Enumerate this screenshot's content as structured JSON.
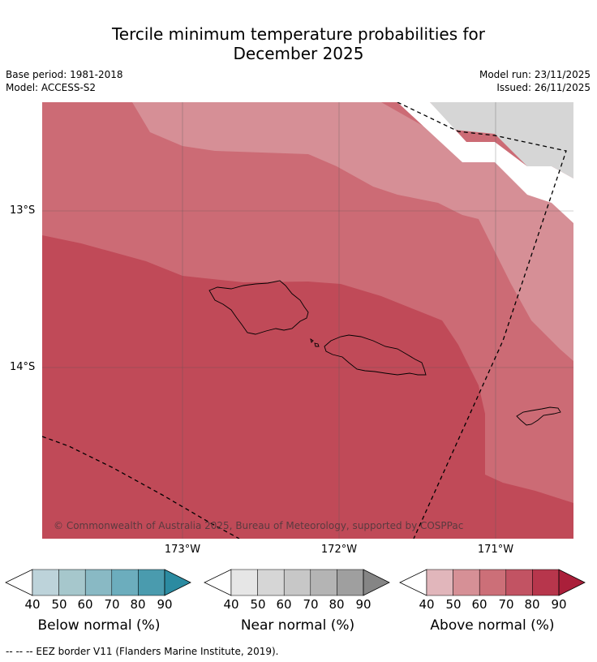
{
  "header": {
    "title_line1": "Tercile minimum temperature probabilities for",
    "title_line2": "December 2025",
    "base_period": "Base period: 1981-2018",
    "model": "Model: ACCESS-S2",
    "model_run": "Model run: 23/11/2025",
    "issued": "Issued: 26/11/2025"
  },
  "map": {
    "lat_labels": [
      "13°S",
      "14°S"
    ],
    "lon_labels": [
      "173°W",
      "172°W",
      "171°W"
    ],
    "copyright": "© Commonwealth of Australia 2025, Bureau of Meteorology, supported by COSPPac",
    "colors": {
      "above_50": "#d68f96",
      "above_60": "#cc6b75",
      "above_70": "#c04a58",
      "near_normal": "#d6d6d6",
      "land_outline": "#000000"
    }
  },
  "legends": {
    "below": {
      "title": "Below normal (%)",
      "ticks": [
        "40",
        "50",
        "60",
        "70",
        "80",
        "90"
      ],
      "colors": [
        "#ffffff",
        "#bdd3da",
        "#a6c7cc",
        "#89b9c4",
        "#6cadbd",
        "#4a9bae",
        "#2b8ba1"
      ]
    },
    "near": {
      "title": "Near normal (%)",
      "ticks": [
        "40",
        "50",
        "60",
        "70",
        "80",
        "90"
      ],
      "colors": [
        "#ffffff",
        "#e6e6e6",
        "#d6d6d6",
        "#c7c7c7",
        "#b4b4b4",
        "#9f9f9f",
        "#858585"
      ]
    },
    "above": {
      "title": "Above normal (%)",
      "ticks": [
        "40",
        "50",
        "60",
        "70",
        "80",
        "90"
      ],
      "colors": [
        "#ffffff",
        "#e1b6bb",
        "#d69096",
        "#cc6f78",
        "#c25363",
        "#b7364c",
        "#aa1f3a"
      ]
    }
  },
  "footnote": "--  --  -- EEZ border V11 (Flanders Marine Institute, 2019)."
}
